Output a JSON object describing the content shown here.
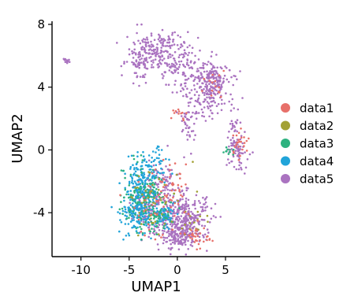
{
  "chart_data": {
    "type": "scatter",
    "xlabel": "UMAP1",
    "ylabel": "UMAP2",
    "xlim": [
      -13,
      8.6
    ],
    "ylim": [
      -6.8,
      8.2
    ],
    "x_ticks": [
      -10,
      -5,
      0,
      5
    ],
    "y_ticks": [
      -4,
      0,
      4,
      8
    ],
    "x_tick_labels": [
      "-10",
      "-5",
      "0",
      "5"
    ],
    "y_tick_labels": [
      "-4",
      "0",
      "4",
      "8"
    ],
    "grid": false,
    "legend_position": "right",
    "series": [
      {
        "name": "data1",
        "color": "#E7706A"
      },
      {
        "name": "data2",
        "color": "#A3A135"
      },
      {
        "name": "data3",
        "color": "#2DB27F"
      },
      {
        "name": "data4",
        "color": "#21A4D9"
      },
      {
        "name": "data5",
        "color": "#AA73C0"
      }
    ],
    "clusters": [
      {
        "series": "data5",
        "cx": -11.5,
        "cy": 5.6,
        "sx": 0.15,
        "sy": 0.12,
        "n": 12
      },
      {
        "series": "data5",
        "cx": -2.0,
        "cy": 6.2,
        "sx": 1.6,
        "sy": 0.7,
        "n": 230
      },
      {
        "series": "data5",
        "cx": -4.0,
        "cy": 5.6,
        "sx": 0.6,
        "sy": 0.6,
        "n": 45
      },
      {
        "series": "data5",
        "cx": 0.5,
        "cy": 5.0,
        "sx": 0.6,
        "sy": 0.8,
        "n": 50
      },
      {
        "series": "data5",
        "cx": 3.2,
        "cy": 3.8,
        "sx": 1.2,
        "sy": 0.9,
        "n": 210
      },
      {
        "series": "data5",
        "cx": 3.8,
        "cy": 4.6,
        "sx": 0.9,
        "sy": 0.5,
        "n": 80
      },
      {
        "series": "data5",
        "cx": 1.2,
        "cy": 1.6,
        "sx": 0.4,
        "sy": 0.9,
        "n": 40
      },
      {
        "series": "data5",
        "cx": 6.3,
        "cy": 0.0,
        "sx": 0.6,
        "sy": 0.6,
        "n": 80
      },
      {
        "series": "data5",
        "cx": 6.0,
        "cy": 1.8,
        "sx": 0.35,
        "sy": 0.5,
        "n": 18
      },
      {
        "series": "data5",
        "cx": 0.6,
        "cy": -4.5,
        "sx": 1.3,
        "sy": 0.8,
        "n": 360
      },
      {
        "series": "data5",
        "cx": 0.2,
        "cy": -5.5,
        "sx": 0.7,
        "sy": 0.4,
        "n": 90
      },
      {
        "series": "data5",
        "cx": -2.8,
        "cy": -3.6,
        "sx": 1.1,
        "sy": 0.8,
        "n": 150
      },
      {
        "series": "data5",
        "cx": -1.5,
        "cy": -1.8,
        "sx": 0.7,
        "sy": 0.6,
        "n": 60
      },
      {
        "series": "data4",
        "cx": -3.6,
        "cy": -2.2,
        "sx": 0.9,
        "sy": 1.0,
        "n": 230
      },
      {
        "series": "data4",
        "cx": -4.3,
        "cy": -4.0,
        "sx": 0.9,
        "sy": 0.7,
        "n": 130
      },
      {
        "series": "data4",
        "cx": -1.2,
        "cy": -4.2,
        "sx": 0.6,
        "sy": 0.4,
        "n": 60
      },
      {
        "series": "data4",
        "cx": -2.0,
        "cy": -0.5,
        "sx": 0.4,
        "sy": 0.6,
        "n": 25
      },
      {
        "series": "data3",
        "cx": -3.5,
        "cy": -3.0,
        "sx": 1.2,
        "sy": 1.1,
        "n": 130
      },
      {
        "series": "data3",
        "cx": -2.0,
        "cy": -4.4,
        "sx": 0.7,
        "sy": 0.3,
        "n": 35
      },
      {
        "series": "data3",
        "cx": 5.3,
        "cy": 0.0,
        "sx": 0.3,
        "sy": 0.4,
        "n": 10
      },
      {
        "series": "data2",
        "cx": -2.5,
        "cy": -3.2,
        "sx": 1.3,
        "sy": 1.2,
        "n": 45
      },
      {
        "series": "data2",
        "cx": 1.5,
        "cy": -4.5,
        "sx": 0.8,
        "sy": 0.5,
        "n": 15
      },
      {
        "series": "data1",
        "cx": 6.5,
        "cy": 0.4,
        "sx": 0.4,
        "sy": 0.6,
        "n": 25
      },
      {
        "series": "data1",
        "cx": 3.8,
        "cy": 4.2,
        "sx": 0.6,
        "sy": 0.5,
        "n": 15
      },
      {
        "series": "data1",
        "cx": -0.5,
        "cy": -2.2,
        "sx": 0.8,
        "sy": 1.0,
        "n": 45
      },
      {
        "series": "data1",
        "cx": 2.0,
        "cy": -5.4,
        "sx": 0.8,
        "sy": 0.4,
        "n": 35
      },
      {
        "series": "data1",
        "cx": 0.2,
        "cy": 2.4,
        "sx": 0.3,
        "sy": 0.3,
        "n": 12
      },
      {
        "series": "data1",
        "cx": -3.0,
        "cy": -3.5,
        "sx": 1.2,
        "sy": 1.1,
        "n": 25
      }
    ]
  }
}
